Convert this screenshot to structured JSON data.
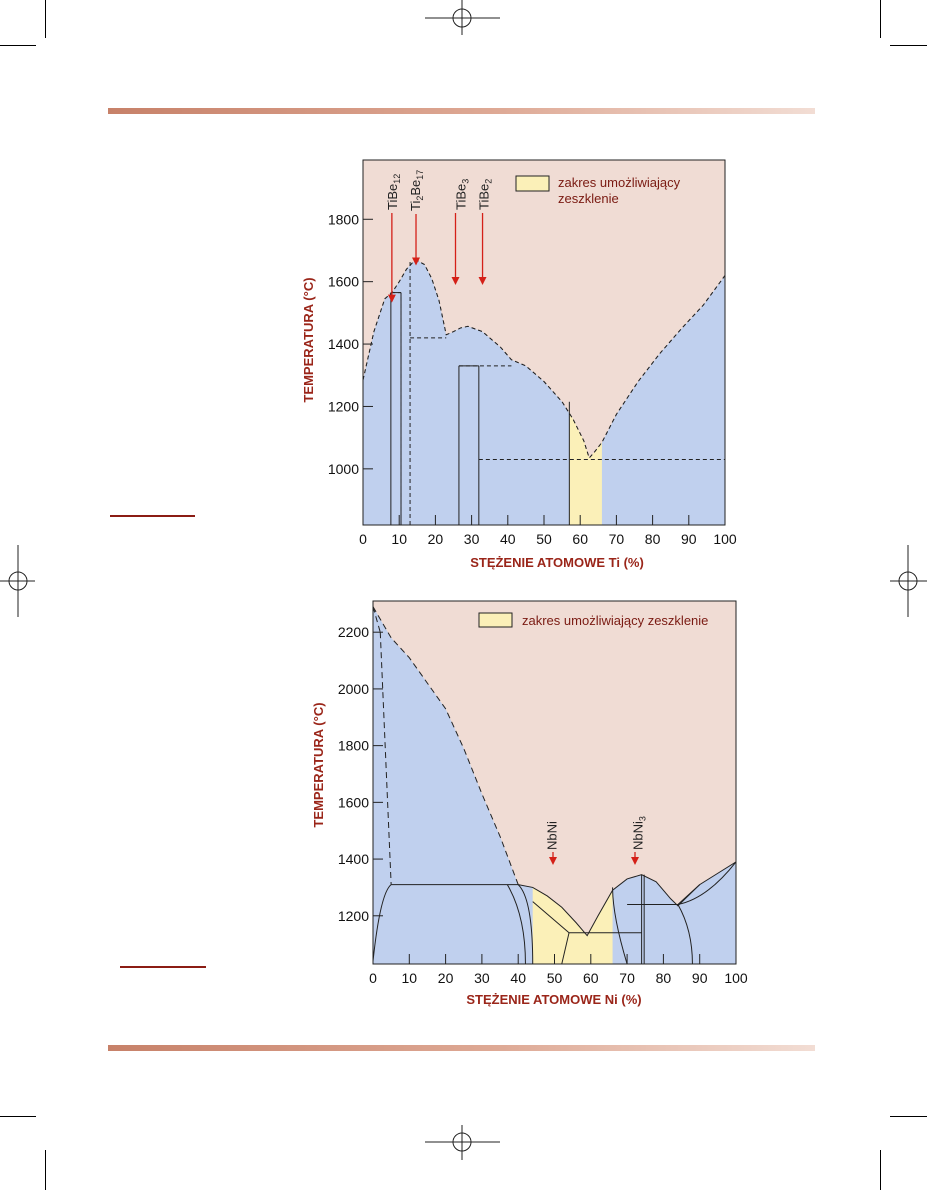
{
  "colors": {
    "liquid": "#f0dcd4",
    "solid": "#c0d0ee",
    "glass": "#fbf0b8",
    "accent": "#9a2519",
    "arrow": "#d42018",
    "rule_start": "#c78169",
    "rule_end": "#f2ddd4"
  },
  "chart_data": [
    {
      "type": "area",
      "xlabel": "STĘŻENIE ATOMOWE Ti (%)",
      "ylabel": "TEMPERATURA (°C)",
      "xlim": [
        0,
        100
      ],
      "ylim": [
        820,
        1990
      ],
      "x_ticks": [
        0,
        10,
        20,
        30,
        40,
        50,
        60,
        70,
        80,
        90,
        100
      ],
      "x_tick_labels": [
        "0",
        "10",
        "20",
        "30",
        "40",
        "50",
        "60",
        "70",
        "80",
        "90",
        "100"
      ],
      "y_ticks": [
        1000,
        1200,
        1400,
        1600,
        1800
      ],
      "y_tick_labels": [
        "1000",
        "1200",
        "1400",
        "1600",
        "1800"
      ],
      "legend": {
        "label": "zakres umożliwiający\nzeszklenie",
        "placement": "top-right"
      },
      "liquidus": [
        {
          "x": 0,
          "y": 1285
        },
        {
          "x": 3,
          "y": 1440
        },
        {
          "x": 6,
          "y": 1545
        },
        {
          "x": 8,
          "y": 1565
        },
        {
          "x": 10,
          "y": 1600
        },
        {
          "x": 12,
          "y": 1640
        },
        {
          "x": 14,
          "y": 1665
        },
        {
          "x": 15,
          "y": 1668
        },
        {
          "x": 17,
          "y": 1655
        },
        {
          "x": 19,
          "y": 1610
        },
        {
          "x": 21,
          "y": 1540
        },
        {
          "x": 23,
          "y": 1430
        },
        {
          "x": 25,
          "y": 1440
        },
        {
          "x": 27,
          "y": 1452
        },
        {
          "x": 29,
          "y": 1457
        },
        {
          "x": 33,
          "y": 1440
        },
        {
          "x": 38,
          "y": 1390
        },
        {
          "x": 41,
          "y": 1350
        },
        {
          "x": 45,
          "y": 1330
        },
        {
          "x": 50,
          "y": 1280
        },
        {
          "x": 55,
          "y": 1215
        },
        {
          "x": 58,
          "y": 1160
        },
        {
          "x": 61,
          "y": 1090
        },
        {
          "x": 62.5,
          "y": 1035
        },
        {
          "x": 64,
          "y": 1055
        },
        {
          "x": 66,
          "y": 1085
        },
        {
          "x": 70,
          "y": 1175
        },
        {
          "x": 76,
          "y": 1280
        },
        {
          "x": 82,
          "y": 1370
        },
        {
          "x": 88,
          "y": 1450
        },
        {
          "x": 94,
          "y": 1525
        },
        {
          "x": 100,
          "y": 1620
        }
      ],
      "glass_range": {
        "x_start": 57,
        "x_end": 66,
        "label": "zakres umożliwiający\nzeszklenie"
      },
      "compounds": [
        {
          "name": "TiBe12",
          "label_main": "TiBe",
          "label_sub": "12",
          "x": 7.7,
          "temperature": 1565
        },
        {
          "name": "Ti2Be17",
          "label_main": "Ti",
          "label_sub1": "2",
          "label_mid": "Be",
          "label_sub2": "17",
          "x": 10.5,
          "temperature": 1668
        },
        {
          "name": "TiBe3",
          "label_main": "TiBe",
          "label_sub": "3",
          "x": 25,
          "temperature": 1430
        },
        {
          "name": "TiBe2",
          "label_main": "TiBe",
          "label_sub": "2",
          "x": 33.3,
          "temperature": 1440
        }
      ],
      "solid_lines": [
        {
          "x": 7.7,
          "from": 820,
          "to": 1565
        },
        {
          "x": 10.5,
          "from": 820,
          "to": 1565
        },
        {
          "x": 26.5,
          "from": 820,
          "to": 1330
        },
        {
          "x": 32,
          "from": 820,
          "to": 1330
        }
      ],
      "dashed_lines": [
        {
          "x1": 7.7,
          "y1": 1565,
          "x2": 10.5,
          "y2": 1565
        },
        {
          "x": 10.5,
          "from": 820,
          "to": 1565,
          "vertical": true
        },
        {
          "x": 13,
          "from": 820,
          "to": 1668,
          "vertical": true
        },
        {
          "x1": 13,
          "y1": 1420,
          "x2": 23,
          "y2": 1420
        },
        {
          "x1": 26.5,
          "y1": 1330,
          "x2": 41,
          "y2": 1330
        },
        {
          "x1": 32,
          "y1": 1030,
          "x2": 100,
          "y2": 1030
        }
      ]
    },
    {
      "type": "area",
      "xlabel": "STĘŻENIE ATOMOWE Ni (%)",
      "ylabel": "TEMPERATURA (°C)",
      "xlim": [
        0,
        100
      ],
      "ylim": [
        1030,
        2310
      ],
      "x_ticks": [
        0,
        10,
        20,
        30,
        40,
        50,
        60,
        70,
        80,
        90,
        100
      ],
      "x_tick_labels": [
        "0",
        "10",
        "20",
        "30",
        "40",
        "50",
        "60",
        "70",
        "80",
        "90",
        "100"
      ],
      "y_ticks": [
        1200,
        1400,
        1600,
        1800,
        2000,
        2200
      ],
      "y_tick_labels": [
        "1200",
        "1400",
        "1600",
        "1800",
        "2000",
        "2200"
      ],
      "legend": {
        "label": "zakres umożliwiający zeszklenie",
        "placement": "top-right"
      },
      "liquidus": [
        {
          "x": 0,
          "y": 2290
        },
        {
          "x": 5,
          "y": 2180
        },
        {
          "x": 10,
          "y": 2110
        },
        {
          "x": 15,
          "y": 2020
        },
        {
          "x": 20,
          "y": 1930
        },
        {
          "x": 25,
          "y": 1790
        },
        {
          "x": 30,
          "y": 1630
        },
        {
          "x": 35,
          "y": 1480
        },
        {
          "x": 40,
          "y": 1310
        },
        {
          "x": 44,
          "y": 1300
        },
        {
          "x": 48,
          "y": 1270
        },
        {
          "x": 52,
          "y": 1230
        },
        {
          "x": 56,
          "y": 1175
        },
        {
          "x": 59,
          "y": 1130
        },
        {
          "x": 62,
          "y": 1200
        },
        {
          "x": 66,
          "y": 1290
        },
        {
          "x": 70,
          "y": 1330
        },
        {
          "x": 74,
          "y": 1345
        },
        {
          "x": 78,
          "y": 1320
        },
        {
          "x": 82,
          "y": 1260
        },
        {
          "x": 84,
          "y": 1235
        },
        {
          "x": 90,
          "y": 1310
        },
        {
          "x": 95,
          "y": 1350
        },
        {
          "x": 100,
          "y": 1390
        }
      ],
      "glass_range": {
        "x_start": 44,
        "x_end": 66,
        "label": "zakres umożliwiający zeszklenie"
      },
      "compounds": [
        {
          "name": "NbNi",
          "label_main": "NbNi",
          "x": 50,
          "temperature": 1300
        },
        {
          "name": "NbNi3",
          "label_main": "NbNi",
          "label_sub": "3",
          "x": 75,
          "temperature": 1345
        }
      ]
    }
  ]
}
